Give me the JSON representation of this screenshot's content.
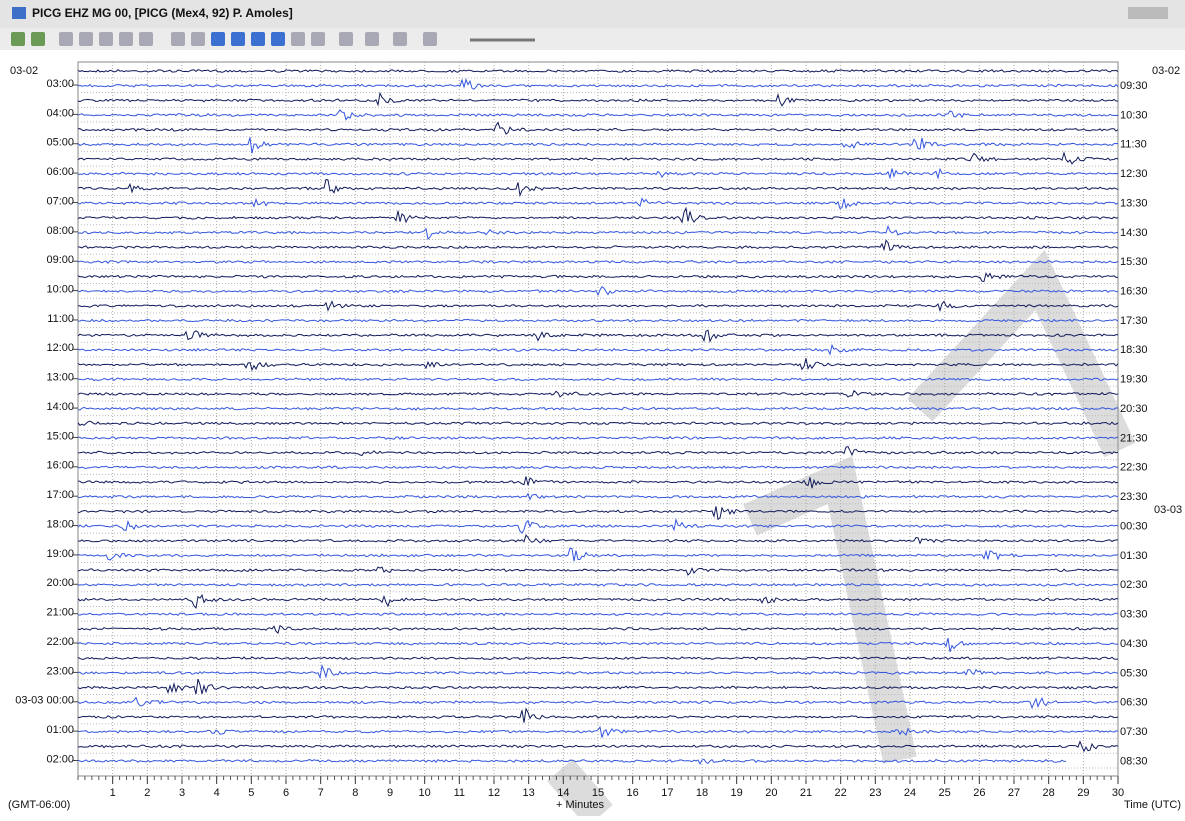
{
  "window": {
    "title": "PICG EHZ MG 00, [PICG (Mex4, 92) P. Amoles]"
  },
  "helicorder": {
    "start_date": "03-02",
    "left_labels": [
      "03:00",
      "04:00",
      "05:00",
      "06:00",
      "07:00",
      "08:00",
      "09:00",
      "10:00",
      "11:00",
      "12:00",
      "13:00",
      "14:00",
      "15:00",
      "16:00",
      "17:00",
      "18:00",
      "19:00",
      "20:00",
      "21:00",
      "22:00",
      "23:00",
      "03-03 00:00",
      "01:00",
      "02:00"
    ],
    "right_date_top": "03-02",
    "right_labels": [
      "09:30",
      "10:30",
      "11:30",
      "12:30",
      "13:30",
      "14:30",
      "15:30",
      "16:30",
      "17:30",
      "18:30",
      "19:30",
      "20:30",
      "21:30",
      "22:30",
      "23:30",
      "00:30",
      "01:30",
      "02:30",
      "03:30",
      "04:30",
      "05:30",
      "06:30",
      "07:30",
      "08:30"
    ],
    "right_date_change": "03-03",
    "x_ticks": [
      "1",
      "2",
      "3",
      "4",
      "5",
      "6",
      "7",
      "8",
      "9",
      "10",
      "11",
      "12",
      "13",
      "14",
      "15",
      "16",
      "17",
      "18",
      "19",
      "20",
      "21",
      "22",
      "23",
      "24",
      "25",
      "26",
      "27",
      "28",
      "29",
      "30"
    ],
    "x_label": "+ Minutes",
    "timezone": "(GMT-06:00)",
    "right_axis_label": "Time (UTC)"
  }
}
